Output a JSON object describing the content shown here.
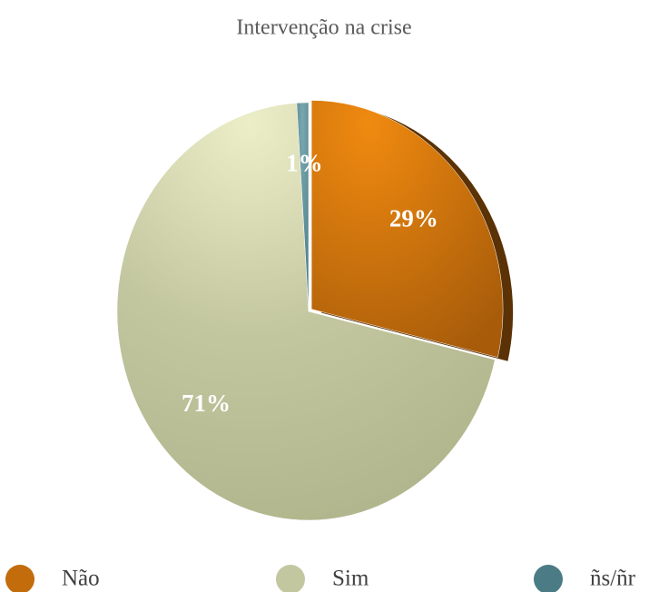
{
  "chart_data": {
    "type": "pie",
    "title": "Intervenção na crise",
    "categories": [
      "Não",
      "Sim",
      "ñs/ñr"
    ],
    "values": [
      29,
      71,
      1
    ],
    "value_labels": [
      "29%",
      "71%",
      "1%"
    ],
    "colors": [
      "#c26c0c",
      "#c3c7a0",
      "#4b7c85"
    ],
    "legend": "bottom"
  }
}
